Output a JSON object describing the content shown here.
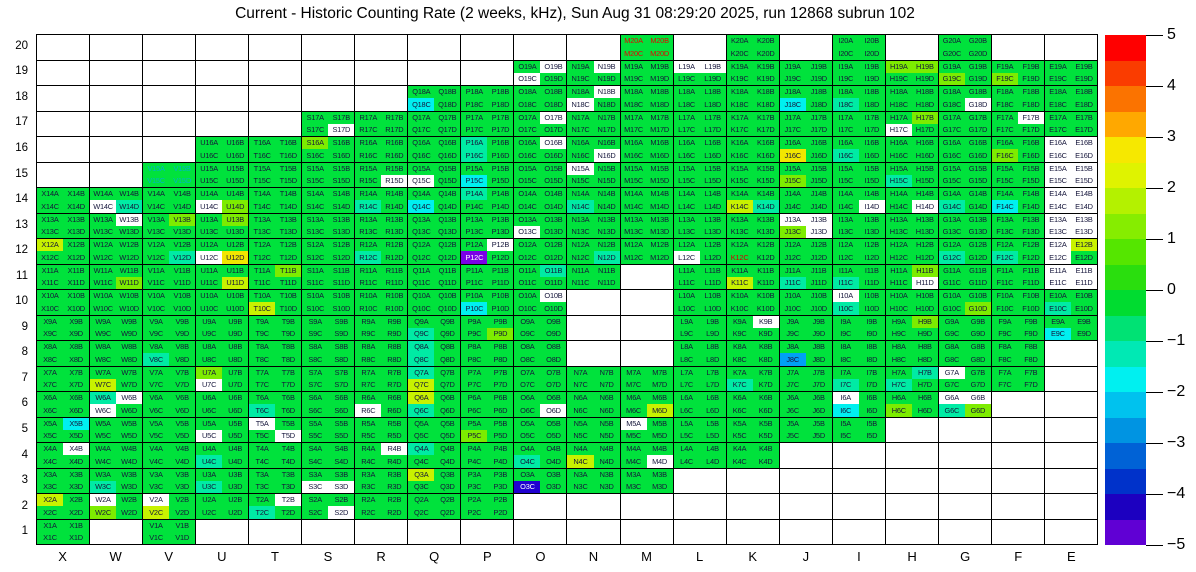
{
  "chart_data": {
    "type": "heatmap",
    "title": "Current - Historic Counting Rate (2 weeks, kHz), Sun Aug 31 08:29:20 2025, run 12868 subrun 102",
    "x_tick_labels": [
      "X",
      "W",
      "V",
      "U",
      "T",
      "S",
      "R",
      "Q",
      "P",
      "O",
      "N",
      "M",
      "L",
      "K",
      "J",
      "I",
      "H",
      "G",
      "F",
      "E"
    ],
    "y_tick_labels": [
      20,
      19,
      18,
      17,
      16,
      15,
      14,
      13,
      12,
      11,
      10,
      9,
      8,
      7,
      6,
      5,
      4,
      3,
      2,
      1
    ],
    "value_range": [
      -5,
      5
    ],
    "grid_on": true,
    "legend_position": "right-colorbar",
    "colorbar": {
      "tick_labels": [
        "5",
        "4",
        "3",
        "2",
        "1",
        "0",
        "−1",
        "−2",
        "−3",
        "−4",
        "−5"
      ],
      "bands_top_to_bottom": [
        "#ff0000",
        "#fa3c00",
        "#fb7300",
        "#ffa800",
        "#f6e800",
        "#dff300",
        "#b4f100",
        "#86ed00",
        "#55e600",
        "#2ade0e",
        "#00dc30",
        "#00e274",
        "#00e9b4",
        "#00f0f0",
        "#00c2ee",
        "#0094e2",
        "#0062d6",
        "#0032ca",
        "#1c00c0",
        "#6000d4"
      ]
    },
    "palette": {
      "g": "#00e23c",
      "t": "#00eba4",
      "c": "#00f0f0",
      "u": "#00a0f5",
      "d": "#2000d0",
      "p": "#7a00e6",
      "l": "#7dec00",
      "m": "#c8f200",
      "y": "#f2e600",
      "w": "#ffffff"
    },
    "palette_value_hint": {
      "g": 0,
      "t": -0.7,
      "c": -1.7,
      "u": -2.7,
      "d": -4,
      "p": -4.7,
      "l": 1,
      "m": 2,
      "y": 2.7,
      "w": "no-data"
    },
    "quad_suffixes": [
      "A",
      "B",
      "C",
      "D"
    ],
    "label_color": "#15153a",
    "grid_line_color": "#000000",
    "text_overrides": {
      "M20": {
        "quads": "ABCD",
        "color": "#e60000"
      },
      "V15": {
        "quads": "ABCD",
        "color": "#00b4c8"
      },
      "K12": {
        "quads": "C",
        "color": "#d40000"
      },
      "O3": {
        "quads": "C",
        "color": "#ffffff"
      },
      "P12": {
        "quads": "C",
        "color": "#ffffff"
      }
    },
    "cells": {
      "20": {
        "M": "gggg",
        "K": "gggg",
        "I": "gggg",
        "G": "gggg"
      },
      "19": {
        "O": "gwwg",
        "N": "gwgg",
        "M": "gggg",
        "L": "wwgg",
        "K": "gggg",
        "J": "gggg",
        "I": "gggg",
        "H": "llgg",
        "G": "gglg",
        "F": "gglg",
        "E": "gggg"
      },
      "18": {
        "Q": "ggcg",
        "P": "gggg",
        "O": "gggg",
        "N": "gwwg",
        "M": "gggg",
        "L": "gggg",
        "K": "gggg",
        "J": "ggcg",
        "I": "ggtg",
        "H": "gggg",
        "G": "gggw",
        "F": "gggg",
        "E": "gggg"
      },
      "17": {
        "S": "gggw",
        "R": "gggg",
        "Q": "gggg",
        "P": "gggg",
        "O": "gwgg",
        "N": "gggg",
        "M": "gggg",
        "L": "gggg",
        "K": "gggg",
        "J": "gggg",
        "I": "gggg",
        "H": "glwg",
        "G": "gggg",
        "F": "gwgg",
        "E": "gggg"
      },
      "16": {
        "U": "gggg",
        "T": "gggg",
        "S": "lggg",
        "R": "gggg",
        "Q": "gggg",
        "P": "tgtg",
        "O": "gwgg",
        "N": "gggw",
        "M": "gggg",
        "L": "gggg",
        "K": "gggg",
        "J": "ggyg",
        "I": "ggtg",
        "H": "gggg",
        "G": "gggg",
        "F": "gglg",
        "E": "wwww"
      },
      "15": {
        "V": "gggg",
        "U": "gggg",
        "T": "gggg",
        "S": "gggg",
        "R": "gggw",
        "Q": "ggwg",
        "P": "ggcg",
        "O": "gggg",
        "N": "wggg",
        "M": "gggg",
        "L": "gggg",
        "K": "gggg",
        "J": "gglg",
        "I": "gggg",
        "H": "ggtg",
        "G": "gggg",
        "F": "gggg",
        "E": "wwww"
      },
      "14": {
        "X": "gggg",
        "W": "ggwt",
        "V": "gggg",
        "U": "ggwl",
        "T": "gggg",
        "S": "gggg",
        "R": "ggtg",
        "Q": "ggcg",
        "P": "tggg",
        "O": "gggg",
        "N": "ggtg",
        "M": "gggg",
        "L": "gggg",
        "K": "ggmt",
        "J": "gggg",
        "I": "gggw",
        "H": "gggw",
        "G": "ggtg",
        "F": "ggcg",
        "E": "wwww"
      },
      "13": {
        "X": "gggg",
        "W": "gwgg",
        "V": "glgg",
        "U": "glgg",
        "T": "gggg",
        "S": "gggg",
        "R": "gggg",
        "Q": "gggg",
        "P": "gggg",
        "O": "ggwg",
        "N": "gggg",
        "M": "gggg",
        "L": "gggg",
        "K": "gggg",
        "J": "wwlw",
        "I": "gggg",
        "H": "gggg",
        "G": "gggg",
        "F": "gggg",
        "E": "wwww"
      },
      "12": {
        "X": "mggg",
        "W": "gggg",
        "V": "gggt",
        "U": "ggwy",
        "T": "gggg",
        "S": "gggg",
        "R": "ggtg",
        "Q": "gggg",
        "P": "gwpg",
        "O": "gggg",
        "N": "gggt",
        "M": "gggg",
        "L": "ggwg",
        "K": "gggg",
        "J": "gggg",
        "I": "gggg",
        "H": "gggg",
        "G": "ggtg",
        "F": "ggtg",
        "E": "wmwg"
      },
      "11": {
        "X": "gggg",
        "W": "gggl",
        "V": "gggg",
        "U": "gggm",
        "T": "glgg",
        "S": "gggg",
        "R": "gggg",
        "Q": "gggg",
        "P": "gggg",
        "O": "gtgg",
        "N": "gggg",
        "L": "gggg",
        "K": "ggmg",
        "J": "ggtg",
        "I": "ggtg",
        "H": "glgw",
        "G": "gggg",
        "F": "gggg",
        "E": "wwww"
      },
      "10": {
        "X": "gggg",
        "W": "gggg",
        "V": "gggg",
        "U": "gggg",
        "T": "ggmg",
        "S": "gggg",
        "R": "gggg",
        "Q": "gggg",
        "P": "ggcg",
        "O": "gwgg",
        "L": "gggg",
        "K": "gggg",
        "J": "gggg",
        "I": "wgtg",
        "H": "gggg",
        "G": "gggl",
        "F": "gggg",
        "E": "ggtg"
      },
      "9": {
        "X": "gggg",
        "W": "gggg",
        "V": "gggg",
        "U": "gggg",
        "T": "gggg",
        "S": "gggg",
        "R": "gggg",
        "Q": "ggtg",
        "P": "gggl",
        "O": "gggg",
        "L": "gggg",
        "K": "gwgg",
        "J": "gggg",
        "I": "gggg",
        "H": "glgg",
        "G": "gggg",
        "F": "gggg",
        "E": "ggcg"
      },
      "8": {
        "X": "gggg",
        "W": "gggg",
        "V": "ggtg",
        "U": "gggg",
        "T": "gggg",
        "S": "gggg",
        "R": "gggg",
        "Q": "tgtg",
        "P": "gggg",
        "O": "gggg",
        "L": "gggg",
        "K": "gggg",
        "J": "ggug",
        "I": "gggg",
        "H": "gggg",
        "G": "gggg",
        "F": "gggg"
      },
      "7": {
        "X": "gggg",
        "W": "ggmg",
        "V": "gggg",
        "U": "lgwg",
        "T": "gggg",
        "S": "gggg",
        "R": "gggg",
        "Q": "tgmg",
        "P": "gggg",
        "O": "gggg",
        "N": "gggg",
        "M": "gggg",
        "L": "gggg",
        "K": "ggtg",
        "J": "gggg",
        "I": "ggtg",
        "H": "gttg",
        "G": "wggg",
        "F": "gggg"
      },
      "6": {
        "X": "gggg",
        "W": "twwg",
        "V": "gggg",
        "U": "gggg",
        "T": "ggtg",
        "S": "gggg",
        "R": "ggwg",
        "Q": "mgtg",
        "P": "gggg",
        "O": "gggw",
        "N": "gggg",
        "M": "gggm",
        "L": "gggg",
        "K": "gggg",
        "J": "gggg",
        "I": "wgcg",
        "H": "gglg",
        "G": "wwtl"
      },
      "5": {
        "X": "gcgg",
        "W": "gggg",
        "V": "gggg",
        "U": "ggwg",
        "T": "wggw",
        "S": "gggg",
        "R": "gggg",
        "Q": "gggg",
        "P": "gglg",
        "O": "gggg",
        "N": "gggg",
        "M": "wggg",
        "L": "gggg",
        "K": "gggg",
        "J": "gggg",
        "I": "gggg"
      },
      "4": {
        "X": "gwgg",
        "W": "gggg",
        "V": "gggg",
        "U": "ggtg",
        "T": "gggg",
        "S": "gggg",
        "R": "gwgg",
        "Q": "tggg",
        "P": "gggg",
        "O": "ggtg",
        "N": "ggmg",
        "M": "gggw",
        "L": "gggg",
        "K": "gggg"
      },
      "3": {
        "X": "gggg",
        "W": "ggtg",
        "V": "gggg",
        "U": "ggtg",
        "T": "gggg",
        "S": "ggww",
        "R": "gggg",
        "Q": "mggg",
        "P": "gggg",
        "O": "ggdg",
        "N": "gggg",
        "M": "gggg"
      },
      "2": {
        "X": "mggg",
        "W": "wglg",
        "V": "wgmg",
        "U": "gggg",
        "T": "gwtg",
        "S": "gggw",
        "R": "gggg",
        "Q": "gggg",
        "P": "gggg"
      },
      "1": {
        "X": "gggg",
        "V": "gggg"
      }
    }
  }
}
